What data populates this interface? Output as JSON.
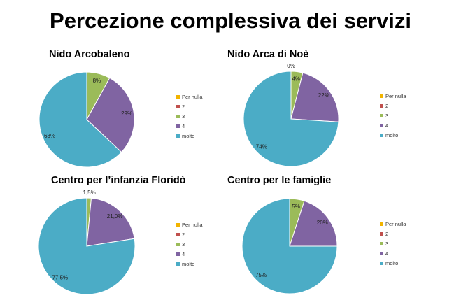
{
  "title": "Percezione complessiva dei servizi",
  "legend_labels": [
    "Per nulla",
    "2",
    "3",
    "4",
    "molto"
  ],
  "colors": [
    "#f2b400",
    "#c0504d",
    "#9bbb59",
    "#8064a2",
    "#4bacc6"
  ],
  "chart_data": [
    {
      "type": "pie",
      "title": "Nido Arcobaleno",
      "categories": [
        "Per nulla",
        "2",
        "3",
        "4",
        "molto"
      ],
      "values": [
        0,
        0,
        8,
        29,
        63
      ],
      "labels": [
        null,
        null,
        "8%",
        "29%",
        "63%"
      ],
      "legend": "right"
    },
    {
      "type": "pie",
      "title": "Nido Arca di Noè",
      "categories": [
        "Per nulla",
        "2",
        "3",
        "4",
        "molto"
      ],
      "values": [
        0,
        0,
        4,
        22,
        74
      ],
      "labels": [
        "0%",
        null,
        "4%",
        "22%",
        "74%"
      ],
      "legend": "right"
    },
    {
      "type": "pie",
      "title": "Centro per l’infanzia Floridò",
      "categories": [
        "Per nulla",
        "2",
        "3",
        "4",
        "molto"
      ],
      "values": [
        0,
        0,
        1.5,
        21.0,
        77.5
      ],
      "labels": [
        null,
        null,
        "1,5%",
        "21,0%",
        "77,5%"
      ],
      "legend": "right"
    },
    {
      "type": "pie",
      "title": "Centro per le famiglie",
      "categories": [
        "Per nulla",
        "2",
        "3",
        "4",
        "molto"
      ],
      "values": [
        0,
        0,
        5,
        20,
        75
      ],
      "labels": [
        null,
        null,
        "5%",
        "20%",
        "75%"
      ],
      "legend": "right"
    }
  ]
}
